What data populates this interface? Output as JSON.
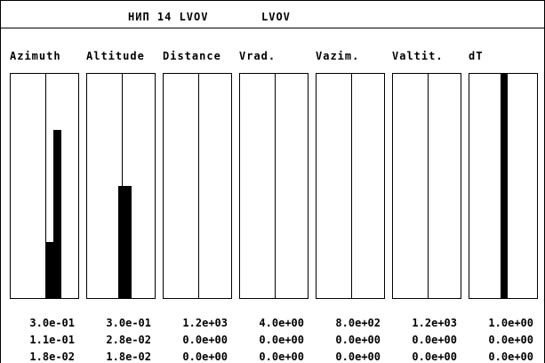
{
  "header": {
    "station": "НИП 14 LVOV",
    "site": "LVOV"
  },
  "columns": [
    {
      "label": "Azimuth",
      "values": [
        "3.0e-01",
        "1.1e-01",
        "1.8e-02"
      ],
      "bars": [
        {
          "side": "right",
          "from": 0.0,
          "to": 0.75
        },
        {
          "side": "right",
          "from": 0.0,
          "to": 0.25
        }
      ]
    },
    {
      "label": "Altitude",
      "values": [
        "3.0e-01",
        "2.8e-02",
        "1.8e-02"
      ],
      "bars": [
        {
          "side": "center",
          "from": 0.0,
          "to": 0.5
        }
      ]
    },
    {
      "label": "Distance",
      "values": [
        "1.2e+03",
        "0.0e+00",
        "0.0e+00"
      ],
      "bars": []
    },
    {
      "label": "Vrad.",
      "values": [
        "4.0e+00",
        "0.0e+00",
        "0.0e+00"
      ],
      "bars": []
    },
    {
      "label": "Vazim.",
      "values": [
        "8.0e+02",
        "0.0e+00",
        "0.0e+00"
      ],
      "bars": []
    },
    {
      "label": "Valtit.",
      "values": [
        "1.2e+03",
        "0.0e+00",
        "0.0e+00"
      ],
      "bars": []
    },
    {
      "label": "dT",
      "values": [
        "1.0e+00",
        "0.0e+00",
        "0.0e+00"
      ],
      "bars": [
        {
          "side": "center",
          "from": 0.0,
          "to": 1.0
        }
      ]
    }
  ]
}
